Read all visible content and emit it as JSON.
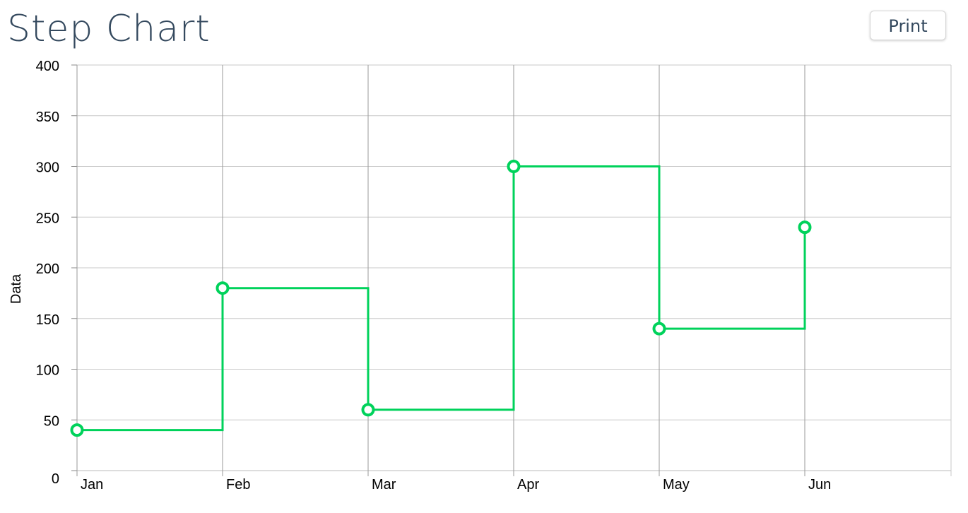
{
  "header": {
    "title": "Step Chart",
    "print_label": "Print"
  },
  "chart_data": {
    "type": "line",
    "subtype": "step",
    "step": "after",
    "categories": [
      "Jan",
      "Feb",
      "Mar",
      "Apr",
      "May",
      "Jun"
    ],
    "series": [
      {
        "values": [
          40,
          180,
          60,
          300,
          140,
          240
        ],
        "color": "#00d25b"
      }
    ],
    "ylabel": "Data",
    "xlabel": "",
    "ylim": [
      0,
      400
    ],
    "yticks": [
      "0",
      "50",
      "100",
      "150",
      "200",
      "250",
      "300",
      "350",
      "400"
    ],
    "grid": true
  }
}
